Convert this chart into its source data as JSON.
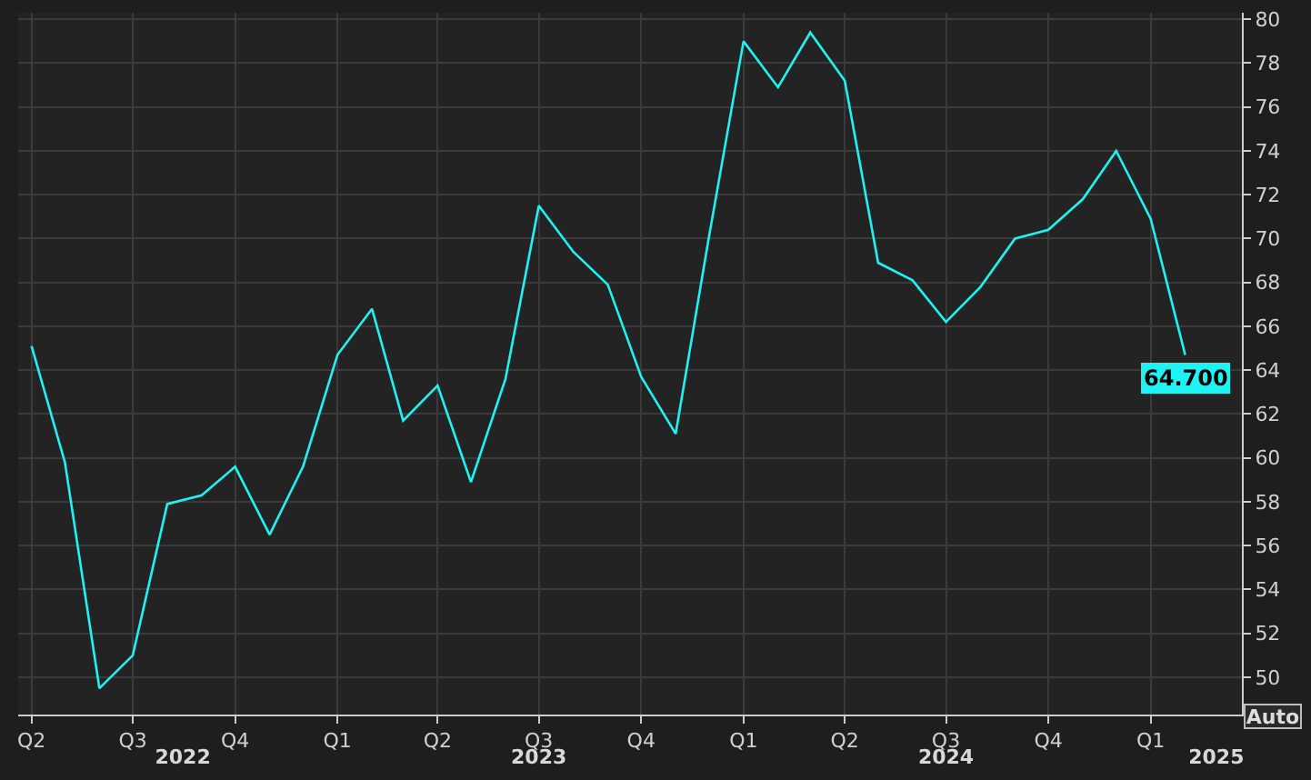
{
  "chart_data": {
    "type": "line",
    "x": [
      "2022-04",
      "2022-05",
      "2022-06",
      "2022-07",
      "2022-08",
      "2022-09",
      "2022-10",
      "2022-11",
      "2022-12",
      "2023-01",
      "2023-02",
      "2023-03",
      "2023-04",
      "2023-05",
      "2023-06",
      "2023-07",
      "2023-08",
      "2023-09",
      "2023-10",
      "2023-11",
      "2023-12",
      "2024-01",
      "2024-02",
      "2024-03",
      "2024-04",
      "2024-05",
      "2024-06",
      "2024-07",
      "2024-08",
      "2024-09",
      "2024-10",
      "2024-11",
      "2024-12",
      "2025-01",
      "2025-02"
    ],
    "series": [
      {
        "color": "#1ef2f2",
        "values": [
          65.1,
          59.8,
          49.5,
          51.0,
          57.9,
          58.3,
          59.6,
          56.5,
          59.6,
          64.7,
          66.8,
          61.7,
          63.3,
          58.9,
          63.6,
          71.5,
          69.4,
          67.9,
          63.7,
          61.1,
          70.1,
          79.0,
          76.9,
          79.4,
          77.2,
          68.9,
          68.1,
          66.2,
          67.8,
          70.0,
          70.4,
          71.8,
          74.0,
          70.9,
          64.7
        ],
        "value_labels": [
          null,
          null,
          null,
          null,
          null,
          null,
          null,
          null,
          null,
          null,
          null,
          null,
          null,
          null,
          null,
          null,
          null,
          null,
          null,
          null,
          null,
          null,
          null,
          null,
          null,
          null,
          null,
          null,
          null,
          null,
          null,
          null,
          null,
          null,
          "64.700"
        ]
      }
    ],
    "xlim": [
      "2022-03-20",
      "2025-03-24"
    ],
    "xticks": [
      {
        "value": "2022-04-01",
        "label": "Q2"
      },
      {
        "value": "2022-07-01",
        "label": "Q3"
      },
      {
        "value": "2022-10-01",
        "label": "Q4"
      },
      {
        "value": "2023-01-01",
        "label": "Q1"
      },
      {
        "value": "2023-04-01",
        "label": "Q2"
      },
      {
        "value": "2023-07-01",
        "label": "Q3"
      },
      {
        "value": "2023-10-01",
        "label": "Q4"
      },
      {
        "value": "2024-01-01",
        "label": "Q1"
      },
      {
        "value": "2024-04-01",
        "label": "Q2"
      },
      {
        "value": "2024-07-01",
        "label": "Q3"
      },
      {
        "value": "2024-10-01",
        "label": "Q4"
      },
      {
        "value": "2025-01-01",
        "label": "Q1"
      }
    ],
    "ylim": [
      48.3,
      80.3
    ],
    "yticks": [
      50,
      52,
      54,
      56,
      58,
      60,
      62,
      64,
      66,
      68,
      70,
      72,
      74,
      76,
      78,
      80
    ],
    "grid": true,
    "marker": "none",
    "line_style": "solid",
    "x2lim": [
      "2022-03-20",
      "2025-03-24"
    ],
    "x2ticks": [
      {
        "value": "2022-08-15",
        "label": "2022"
      },
      {
        "value": "2023-07-01",
        "label": "2023"
      },
      {
        "value": "2024-07-01",
        "label": "2024"
      },
      {
        "value": "2025-03-01",
        "label": "2025"
      }
    ],
    "annotations": [
      "Auto"
    ]
  }
}
